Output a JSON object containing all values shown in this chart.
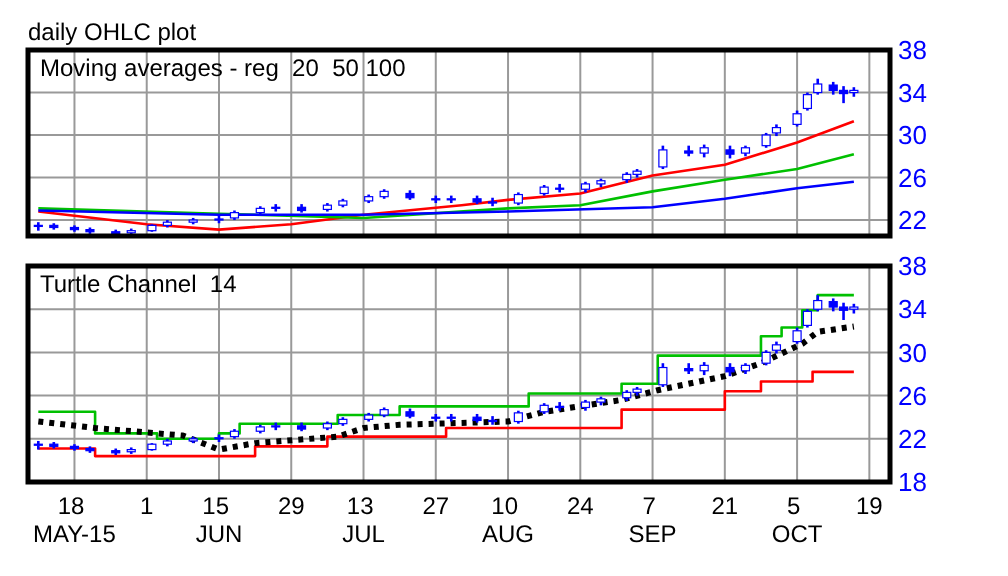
{
  "chart_data": [
    {
      "type": "candlestick",
      "title": "daily OHLC plot",
      "subtitle": "Moving averages - reg  20  50 100",
      "xlim": [
        "--05-09",
        "--10-23"
      ],
      "xticks": [
        {
          "value": "--05-18",
          "label": null
        },
        {
          "value": "--06-01",
          "label": null
        },
        {
          "value": "--06-15",
          "label": null
        },
        {
          "value": "--06-29",
          "label": null
        },
        {
          "value": "--07-13",
          "label": null
        },
        {
          "value": "--07-27",
          "label": null
        },
        {
          "value": "--08-10",
          "label": null
        },
        {
          "value": "--08-24",
          "label": null
        },
        {
          "value": "--09-07",
          "label": null
        },
        {
          "value": "--09-21",
          "label": null
        },
        {
          "value": "--10-05",
          "label": null
        },
        {
          "value": "--10-19",
          "label": null
        }
      ],
      "ylim": [
        20.5,
        38
      ],
      "yticks": [
        22,
        26,
        30,
        34,
        38
      ],
      "grid": true,
      "tick_labels": "y",
      "series": [
        {
          "type": "line",
          "color": "#ff0000",
          "line_style": "solid",
          "x": [
            "--05-11",
            "--06-01",
            "--06-15",
            "--06-29",
            "--07-13",
            "--08-01",
            "--08-10",
            "--08-24",
            "--09-07",
            "--09-21",
            "--10-05",
            "--10-16"
          ],
          "values": [
            22.8,
            21.6,
            21.1,
            21.6,
            22.5,
            23.4,
            23.9,
            24.5,
            26.2,
            27.2,
            29.3,
            31.3
          ]
        },
        {
          "type": "line",
          "color": "#00c000",
          "line_style": "solid",
          "x": [
            "--05-11",
            "--06-15",
            "--07-13",
            "--08-10",
            "--08-24",
            "--09-07",
            "--09-21",
            "--10-05",
            "--10-16"
          ],
          "values": [
            23.1,
            22.6,
            22.2,
            23.1,
            23.4,
            24.7,
            25.8,
            26.8,
            28.2
          ]
        },
        {
          "type": "line",
          "color": "#0000ff",
          "line_style": "solid",
          "x": [
            "--05-11",
            "--06-15",
            "--07-13",
            "--08-10",
            "--09-07",
            "--09-21",
            "--10-05",
            "--10-16"
          ],
          "values": [
            22.9,
            22.5,
            22.5,
            22.8,
            23.2,
            24.0,
            25.0,
            25.6
          ]
        },
        {
          "type": "candlestick",
          "color": "#0000ff",
          "x": [
            "--05-11",
            "--05-14",
            "--05-18",
            "--05-21",
            "--05-26",
            "--05-29",
            "--06-02",
            "--06-05",
            "--06-10",
            "--06-15",
            "--06-18",
            "--06-23",
            "--06-26",
            "--07-01",
            "--07-06",
            "--07-09",
            "--07-14",
            "--07-17",
            "--07-22",
            "--07-27",
            "--07-30",
            "--08-04",
            "--08-07",
            "--08-12",
            "--08-17",
            "--08-20",
            "--08-25",
            "--08-28",
            "--09-02",
            "--09-04",
            "--09-09",
            "--09-14",
            "--09-17",
            "--09-22",
            "--09-25",
            "--09-29",
            "--10-01",
            "--10-05",
            "--10-07",
            "--10-09",
            "--10-12",
            "--10-14",
            "--10-16"
          ],
          "ohlc": [
            [
              21.4,
              21.8,
              21.0,
              21.5
            ],
            [
              21.5,
              21.7,
              21.1,
              21.3
            ],
            [
              21.3,
              21.5,
              20.9,
              21.1
            ],
            [
              21.1,
              21.3,
              20.7,
              20.9
            ],
            [
              20.9,
              21.1,
              20.5,
              20.7
            ],
            [
              20.8,
              21.2,
              20.6,
              21.0
            ],
            [
              21.0,
              21.6,
              20.9,
              21.5
            ],
            [
              21.5,
              22.0,
              21.3,
              21.8
            ],
            [
              21.8,
              22.2,
              21.6,
              22.0
            ],
            [
              22.0,
              22.4,
              21.7,
              22.1
            ],
            [
              22.2,
              22.9,
              22.0,
              22.7
            ],
            [
              22.7,
              23.3,
              22.5,
              23.1
            ],
            [
              23.1,
              23.5,
              22.8,
              23.2
            ],
            [
              23.2,
              23.5,
              22.7,
              22.9
            ],
            [
              23.0,
              23.6,
              22.8,
              23.4
            ],
            [
              23.4,
              24.0,
              23.2,
              23.8
            ],
            [
              23.8,
              24.4,
              23.6,
              24.2
            ],
            [
              24.2,
              24.9,
              24.0,
              24.7
            ],
            [
              24.5,
              24.8,
              23.9,
              24.1
            ],
            [
              24.0,
              24.3,
              23.6,
              23.9
            ],
            [
              23.9,
              24.3,
              23.6,
              24.0
            ],
            [
              24.0,
              24.3,
              23.5,
              23.7
            ],
            [
              23.7,
              24.1,
              23.3,
              23.6
            ],
            [
              23.6,
              24.6,
              23.4,
              24.4
            ],
            [
              24.5,
              25.3,
              24.3,
              25.1
            ],
            [
              25.0,
              25.4,
              24.6,
              24.9
            ],
            [
              24.9,
              25.6,
              24.6,
              25.4
            ],
            [
              25.4,
              25.9,
              25.1,
              25.7
            ],
            [
              25.8,
              26.5,
              25.5,
              26.3
            ],
            [
              26.3,
              26.8,
              26.0,
              26.6
            ],
            [
              27.0,
              29.0,
              26.8,
              28.6
            ],
            [
              28.5,
              29.0,
              28.0,
              28.3
            ],
            [
              28.3,
              29.1,
              27.9,
              28.8
            ],
            [
              28.6,
              29.0,
              27.8,
              28.2
            ],
            [
              28.3,
              29.0,
              28.0,
              28.8
            ],
            [
              29.0,
              30.2,
              28.8,
              30.0
            ],
            [
              30.2,
              31.0,
              29.9,
              30.7
            ],
            [
              31.0,
              32.3,
              30.8,
              32.0
            ],
            [
              32.5,
              34.0,
              32.3,
              33.8
            ],
            [
              34.0,
              35.3,
              33.8,
              34.8
            ],
            [
              34.7,
              35.0,
              33.8,
              34.2
            ],
            [
              34.2,
              34.6,
              33.0,
              33.9
            ],
            [
              34.0,
              34.5,
              33.6,
              34.2
            ]
          ]
        }
      ]
    },
    {
      "type": "candlestick",
      "subtitle": "Turtle Channel  14",
      "xlim": [
        "--05-09",
        "--10-23"
      ],
      "xticks": [
        {
          "value": "--05-18",
          "label": "18 MAY-15"
        },
        {
          "value": "--06-01",
          "label": "1"
        },
        {
          "value": "--06-15",
          "label": "15 JUN"
        },
        {
          "value": "--06-29",
          "label": "29"
        },
        {
          "value": "--07-13",
          "label": "13 JUL"
        },
        {
          "value": "--07-27",
          "label": "27"
        },
        {
          "value": "--08-10",
          "label": "10 AUG"
        },
        {
          "value": "--08-24",
          "label": "24"
        },
        {
          "value": "--09-07",
          "label": "7 SEP"
        },
        {
          "value": "--09-21",
          "label": "21"
        },
        {
          "value": "--10-05",
          "label": "5 OCT"
        },
        {
          "value": "--10-19",
          "label": "19"
        }
      ],
      "ylim": [
        18,
        38
      ],
      "yticks": [
        18,
        22,
        26,
        30,
        34,
        38
      ],
      "grid": true,
      "series": [
        {
          "type": "step",
          "color": "#00c000",
          "line_style": "solid",
          "x": [
            "--05-11",
            "--05-22",
            "--06-03",
            "--06-15",
            "--06-19",
            "--07-08",
            "--07-20",
            "--08-14",
            "--09-01",
            "--09-08",
            "--09-28",
            "--10-02",
            "--10-06",
            "--10-09",
            "--10-16"
          ],
          "values": [
            24.5,
            22.5,
            22.0,
            22.5,
            23.4,
            24.2,
            25.0,
            26.2,
            27.1,
            29.7,
            31.5,
            32.3,
            33.9,
            35.3,
            35.3
          ]
        },
        {
          "type": "step",
          "color": "#ff0000",
          "line_style": "solid",
          "x": [
            "--05-11",
            "--05-22",
            "--06-15",
            "--06-22",
            "--07-06",
            "--07-29",
            "--09-01",
            "--09-14",
            "--09-21",
            "--09-28",
            "--10-08",
            "--10-16"
          ],
          "values": [
            21.1,
            20.4,
            20.4,
            21.3,
            22.2,
            23.0,
            24.7,
            24.7,
            26.4,
            27.3,
            28.2,
            28.2
          ]
        },
        {
          "type": "line",
          "color": "#000000",
          "line_style": "dotted",
          "x": [
            "--05-11",
            "--05-22",
            "--06-08",
            "--06-15",
            "--06-22",
            "--07-08",
            "--07-13",
            "--07-20",
            "--08-10",
            "--08-17",
            "--09-01",
            "--09-08",
            "--09-21",
            "--09-28",
            "--10-06",
            "--10-09",
            "--10-16"
          ],
          "values": [
            23.6,
            23.0,
            22.3,
            21.0,
            21.6,
            22.2,
            23.0,
            23.3,
            23.6,
            24.5,
            25.6,
            26.5,
            27.8,
            29.0,
            30.8,
            31.9,
            32.4
          ]
        },
        {
          "type": "candlestick",
          "color": "#0000ff",
          "x": [
            "--05-11",
            "--05-14",
            "--05-18",
            "--05-21",
            "--05-26",
            "--05-29",
            "--06-02",
            "--06-05",
            "--06-10",
            "--06-15",
            "--06-18",
            "--06-23",
            "--06-26",
            "--07-01",
            "--07-06",
            "--07-09",
            "--07-14",
            "--07-17",
            "--07-22",
            "--07-27",
            "--07-30",
            "--08-04",
            "--08-07",
            "--08-12",
            "--08-17",
            "--08-20",
            "--08-25",
            "--08-28",
            "--09-02",
            "--09-04",
            "--09-09",
            "--09-14",
            "--09-17",
            "--09-22",
            "--09-25",
            "--09-29",
            "--10-01",
            "--10-05",
            "--10-07",
            "--10-09",
            "--10-12",
            "--10-14",
            "--10-16"
          ],
          "ohlc": [
            [
              21.4,
              21.8,
              21.0,
              21.5
            ],
            [
              21.5,
              21.7,
              21.1,
              21.3
            ],
            [
              21.3,
              21.5,
              20.9,
              21.1
            ],
            [
              21.1,
              21.3,
              20.7,
              20.9
            ],
            [
              20.9,
              21.1,
              20.5,
              20.7
            ],
            [
              20.8,
              21.2,
              20.6,
              21.0
            ],
            [
              21.0,
              21.6,
              20.9,
              21.5
            ],
            [
              21.5,
              22.0,
              21.3,
              21.8
            ],
            [
              21.8,
              22.2,
              21.6,
              22.0
            ],
            [
              22.0,
              22.4,
              21.7,
              22.1
            ],
            [
              22.2,
              22.9,
              22.0,
              22.7
            ],
            [
              22.7,
              23.3,
              22.5,
              23.1
            ],
            [
              23.1,
              23.5,
              22.8,
              23.2
            ],
            [
              23.2,
              23.5,
              22.7,
              22.9
            ],
            [
              23.0,
              23.6,
              22.8,
              23.4
            ],
            [
              23.4,
              24.0,
              23.2,
              23.8
            ],
            [
              23.8,
              24.4,
              23.6,
              24.2
            ],
            [
              24.2,
              24.9,
              24.0,
              24.7
            ],
            [
              24.5,
              24.8,
              23.9,
              24.1
            ],
            [
              24.0,
              24.3,
              23.6,
              23.9
            ],
            [
              23.9,
              24.3,
              23.6,
              24.0
            ],
            [
              24.0,
              24.3,
              23.5,
              23.7
            ],
            [
              23.7,
              24.1,
              23.3,
              23.6
            ],
            [
              23.6,
              24.6,
              23.4,
              24.4
            ],
            [
              24.5,
              25.3,
              24.3,
              25.1
            ],
            [
              25.0,
              25.4,
              24.6,
              24.9
            ],
            [
              24.9,
              25.6,
              24.6,
              25.4
            ],
            [
              25.4,
              25.9,
              25.1,
              25.7
            ],
            [
              25.8,
              26.5,
              25.5,
              26.3
            ],
            [
              26.3,
              26.8,
              26.0,
              26.6
            ],
            [
              27.0,
              29.0,
              26.8,
              28.6
            ],
            [
              28.5,
              29.0,
              28.0,
              28.3
            ],
            [
              28.3,
              29.1,
              27.9,
              28.8
            ],
            [
              28.6,
              29.0,
              27.8,
              28.2
            ],
            [
              28.3,
              29.0,
              28.0,
              28.8
            ],
            [
              29.0,
              30.2,
              28.8,
              30.0
            ],
            [
              30.2,
              31.0,
              29.9,
              30.7
            ],
            [
              31.0,
              32.3,
              30.8,
              32.0
            ],
            [
              32.5,
              34.0,
              32.3,
              33.8
            ],
            [
              34.0,
              35.3,
              33.8,
              34.8
            ],
            [
              34.7,
              35.0,
              33.8,
              34.2
            ],
            [
              34.2,
              34.6,
              33.0,
              33.9
            ],
            [
              34.0,
              34.5,
              33.6,
              34.2
            ]
          ]
        }
      ]
    }
  ]
}
